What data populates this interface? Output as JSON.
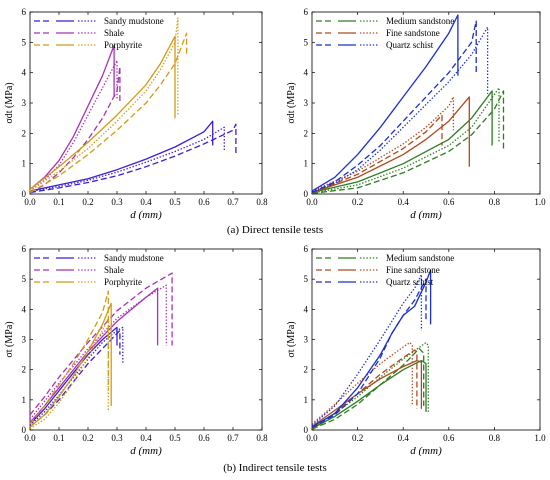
{
  "captions": [
    "(a) Direct tensile tests",
    "(b) Indirect tensile tests"
  ],
  "chart_data": [
    {
      "type": "line",
      "panel": "a-left",
      "xlabel": "d (mm)",
      "ylabel": "σdt (MPa)",
      "xlim": [
        0,
        0.8
      ],
      "ylim": [
        0,
        6
      ],
      "xticks": [
        "0.0",
        "0.1",
        "0.2",
        "0.3",
        "0.4",
        "0.5",
        "0.6",
        "0.7",
        "0.8"
      ],
      "yticks": [
        "0",
        "1",
        "2",
        "3",
        "4",
        "5",
        "6"
      ],
      "legend": {
        "placement": "top-left",
        "entries": [
          {
            "name": "Sandy mudstone",
            "color": "#3a1fd6"
          },
          {
            "name": "Shale",
            "color": "#a830b8"
          },
          {
            "name": "Porphyrite",
            "color": "#d39b14"
          }
        ]
      },
      "series": [
        {
          "name": "Sandy mudstone",
          "style": "solid",
          "color": "#3a1fd6",
          "x": [
            0,
            0.1,
            0.2,
            0.3,
            0.4,
            0.5,
            0.6,
            0.63,
            0.63
          ],
          "y": [
            0.1,
            0.3,
            0.5,
            0.8,
            1.15,
            1.55,
            2.05,
            2.4,
            1.6
          ]
        },
        {
          "name": "Sandy mudstone",
          "style": "dotted",
          "color": "#3a1fd6",
          "x": [
            0,
            0.1,
            0.2,
            0.3,
            0.4,
            0.5,
            0.6,
            0.67,
            0.67
          ],
          "y": [
            0.08,
            0.25,
            0.45,
            0.72,
            1.05,
            1.4,
            1.8,
            2.2,
            1.4
          ]
        },
        {
          "name": "Sandy mudstone",
          "style": "dashed",
          "color": "#3a1fd6",
          "x": [
            0,
            0.1,
            0.2,
            0.3,
            0.4,
            0.5,
            0.6,
            0.7,
            0.71,
            0.71
          ],
          "y": [
            0.05,
            0.2,
            0.38,
            0.6,
            0.9,
            1.25,
            1.65,
            2.1,
            2.3,
            1.3
          ]
        },
        {
          "name": "Shale",
          "style": "solid",
          "color": "#a830b8",
          "x": [
            0,
            0.05,
            0.1,
            0.15,
            0.2,
            0.25,
            0.29,
            0.29
          ],
          "y": [
            0.15,
            0.55,
            1.1,
            1.9,
            2.9,
            3.9,
            4.9,
            3.2
          ]
        },
        {
          "name": "Shale",
          "style": "dotted",
          "color": "#a830b8",
          "x": [
            0,
            0.05,
            0.1,
            0.15,
            0.2,
            0.25,
            0.3,
            0.3
          ],
          "y": [
            0.1,
            0.45,
            0.95,
            1.7,
            2.6,
            3.5,
            4.4,
            3.1
          ]
        },
        {
          "name": "Shale",
          "style": "dashed",
          "color": "#a830b8",
          "x": [
            0,
            0.05,
            0.1,
            0.15,
            0.2,
            0.25,
            0.3,
            0.31,
            0.31
          ],
          "y": [
            0.05,
            0.3,
            0.7,
            1.2,
            1.8,
            2.5,
            3.4,
            4.2,
            3.0
          ]
        },
        {
          "name": "Porphyrite",
          "style": "solid",
          "color": "#d39b14",
          "x": [
            0,
            0.1,
            0.2,
            0.3,
            0.4,
            0.45,
            0.5,
            0.5
          ],
          "y": [
            0.15,
            0.9,
            1.7,
            2.6,
            3.6,
            4.3,
            5.2,
            2.5
          ]
        },
        {
          "name": "Porphyrite",
          "style": "dotted",
          "color": "#d39b14",
          "x": [
            0,
            0.1,
            0.2,
            0.3,
            0.4,
            0.45,
            0.5,
            0.51,
            0.51
          ],
          "y": [
            0.1,
            0.75,
            1.5,
            2.4,
            3.4,
            4.1,
            5.0,
            5.8,
            2.6
          ]
        },
        {
          "name": "Porphyrite",
          "style": "dashed",
          "color": "#d39b14",
          "x": [
            0,
            0.1,
            0.2,
            0.3,
            0.4,
            0.45,
            0.5,
            0.54,
            0.54
          ],
          "y": [
            0.05,
            0.6,
            1.3,
            2.1,
            3.0,
            3.6,
            4.3,
            5.3,
            4.6
          ]
        }
      ]
    },
    {
      "type": "line",
      "panel": "a-right",
      "xlabel": "d (mm)",
      "ylabel": "σdt (MPa)",
      "xlim": [
        0,
        1.0
      ],
      "ylim": [
        0,
        6
      ],
      "xticks": [
        "0.0",
        "0.2",
        "0.4",
        "0.6",
        "0.8",
        "1.0"
      ],
      "yticks": [
        "0",
        "1",
        "2",
        "3",
        "4",
        "5",
        "6"
      ],
      "legend": {
        "placement": "top-left",
        "entries": [
          {
            "name": "Medium sandstone",
            "color": "#2b7d1e"
          },
          {
            "name": "Fine sandstone",
            "color": "#b04a1c"
          },
          {
            "name": "Quartz schist",
            "color": "#1a2fd0"
          }
        ]
      },
      "series": [
        {
          "name": "Medium sandstone",
          "style": "solid",
          "color": "#2b7d1e",
          "x": [
            0,
            0.2,
            0.4,
            0.6,
            0.7,
            0.79,
            0.79
          ],
          "y": [
            0.05,
            0.4,
            1.0,
            1.8,
            2.5,
            3.4,
            1.6
          ]
        },
        {
          "name": "Medium sandstone",
          "style": "dotted",
          "color": "#2b7d1e",
          "x": [
            0,
            0.2,
            0.4,
            0.6,
            0.7,
            0.82,
            0.82
          ],
          "y": [
            0.03,
            0.3,
            0.85,
            1.6,
            2.2,
            3.5,
            1.7
          ]
        },
        {
          "name": "Medium sandstone",
          "style": "dashed",
          "color": "#2b7d1e",
          "x": [
            0,
            0.2,
            0.4,
            0.6,
            0.7,
            0.8,
            0.84,
            0.84
          ],
          "y": [
            0.02,
            0.2,
            0.7,
            1.4,
            1.95,
            2.8,
            3.4,
            1.5
          ]
        },
        {
          "name": "Fine sandstone",
          "style": "solid",
          "color": "#b04a1c",
          "x": [
            0,
            0.2,
            0.4,
            0.5,
            0.6,
            0.69,
            0.69
          ],
          "y": [
            0.05,
            0.55,
            1.3,
            1.8,
            2.4,
            3.2,
            0.9
          ]
        },
        {
          "name": "Fine sandstone",
          "style": "dotted",
          "color": "#b04a1c",
          "x": [
            0,
            0.2,
            0.4,
            0.5,
            0.6,
            0.62,
            0.62
          ],
          "y": [
            0.1,
            0.75,
            1.65,
            2.2,
            2.9,
            3.2,
            2.1
          ]
        },
        {
          "name": "Fine sandstone",
          "style": "dashed",
          "color": "#b04a1c",
          "x": [
            0,
            0.2,
            0.4,
            0.5,
            0.57,
            0.57
          ],
          "y": [
            0.04,
            0.65,
            1.5,
            2.05,
            2.6,
            1.6
          ]
        },
        {
          "name": "Quartz schist",
          "style": "solid",
          "color": "#1a2fd0",
          "x": [
            0,
            0.1,
            0.2,
            0.3,
            0.4,
            0.5,
            0.6,
            0.64,
            0.64
          ],
          "y": [
            0.1,
            0.55,
            1.3,
            2.2,
            3.2,
            4.2,
            5.3,
            5.9,
            3.9
          ]
        },
        {
          "name": "Quartz schist",
          "style": "dotted",
          "color": "#1a2fd0",
          "x": [
            0,
            0.1,
            0.2,
            0.3,
            0.4,
            0.5,
            0.6,
            0.7,
            0.77,
            0.77
          ],
          "y": [
            0.08,
            0.35,
            0.8,
            1.45,
            2.2,
            2.95,
            3.7,
            4.6,
            5.5,
            3.3
          ]
        },
        {
          "name": "Quartz schist",
          "style": "dashed",
          "color": "#1a2fd0",
          "x": [
            0,
            0.1,
            0.2,
            0.3,
            0.4,
            0.5,
            0.6,
            0.7,
            0.72,
            0.72
          ],
          "y": [
            0.05,
            0.4,
            0.95,
            1.6,
            2.4,
            3.2,
            4.0,
            5.0,
            5.7,
            4.0
          ]
        }
      ]
    },
    {
      "type": "line",
      "panel": "b-left",
      "xlabel": "d (mm)",
      "ylabel": "σt (MPa)",
      "xlim": [
        0,
        0.8
      ],
      "ylim": [
        0,
        6
      ],
      "xticks": [
        "0.0",
        "0.1",
        "0.2",
        "0.3",
        "0.4",
        "0.5",
        "0.6",
        "0.7",
        "0.8"
      ],
      "yticks": [
        "0",
        "1",
        "2",
        "3",
        "4",
        "5",
        "6"
      ],
      "legend": {
        "placement": "top-left",
        "entries": [
          {
            "name": "Sandy mudstone",
            "color": "#3a1fd6"
          },
          {
            "name": "Shale",
            "color": "#a830b8"
          },
          {
            "name": "Porphyrite",
            "color": "#d39b14"
          }
        ]
      },
      "series": [
        {
          "name": "Sandy mudstone",
          "style": "solid",
          "color": "#3a1fd6",
          "x": [
            0,
            0.05,
            0.1,
            0.15,
            0.2,
            0.25,
            0.3,
            0.3
          ],
          "y": [
            0.2,
            0.7,
            1.3,
            1.9,
            2.5,
            3.0,
            3.4,
            2.8
          ]
        },
        {
          "name": "Sandy mudstone",
          "style": "dotted",
          "color": "#3a1fd6",
          "x": [
            0,
            0.05,
            0.1,
            0.15,
            0.2,
            0.25,
            0.3,
            0.32,
            0.32
          ],
          "y": [
            0.15,
            0.6,
            1.15,
            1.75,
            2.35,
            2.9,
            3.3,
            3.4,
            2.2
          ]
        },
        {
          "name": "Sandy mudstone",
          "style": "dashed",
          "color": "#3a1fd6",
          "x": [
            0,
            0.05,
            0.1,
            0.15,
            0.2,
            0.25,
            0.3,
            0.31,
            0.31
          ],
          "y": [
            0.1,
            0.5,
            1.0,
            1.6,
            2.2,
            2.7,
            3.2,
            3.3,
            2.5
          ]
        },
        {
          "name": "Shale",
          "style": "solid",
          "color": "#a830b8",
          "x": [
            0,
            0.05,
            0.1,
            0.2,
            0.3,
            0.4,
            0.44,
            0.44
          ],
          "y": [
            0.25,
            0.8,
            1.4,
            2.6,
            3.6,
            4.4,
            4.7,
            2.8
          ]
        },
        {
          "name": "Shale",
          "style": "dotted",
          "color": "#a830b8",
          "x": [
            0,
            0.05,
            0.1,
            0.2,
            0.3,
            0.4,
            0.47,
            0.47
          ],
          "y": [
            0.35,
            0.95,
            1.55,
            2.7,
            3.7,
            4.4,
            4.8,
            2.8
          ]
        },
        {
          "name": "Shale",
          "style": "dashed",
          "color": "#a830b8",
          "x": [
            0,
            0.05,
            0.1,
            0.2,
            0.3,
            0.4,
            0.49,
            0.49
          ],
          "y": [
            0.5,
            1.1,
            1.75,
            2.9,
            3.95,
            4.7,
            5.2,
            2.8
          ]
        },
        {
          "name": "Porphyrite",
          "style": "solid",
          "color": "#d39b14",
          "x": [
            0,
            0.05,
            0.1,
            0.15,
            0.2,
            0.25,
            0.28,
            0.28
          ],
          "y": [
            0.1,
            0.5,
            1.1,
            1.8,
            2.6,
            3.5,
            4.2,
            0.8
          ]
        },
        {
          "name": "Porphyrite",
          "style": "dotted",
          "color": "#d39b14",
          "x": [
            0,
            0.05,
            0.1,
            0.15,
            0.2,
            0.25,
            0.27,
            0.27
          ],
          "y": [
            0.05,
            0.35,
            0.9,
            1.6,
            2.4,
            3.3,
            3.7,
            0.6
          ]
        },
        {
          "name": "Porphyrite",
          "style": "dashed",
          "color": "#d39b14",
          "x": [
            0,
            0.05,
            0.1,
            0.15,
            0.2,
            0.25,
            0.27,
            0.27
          ],
          "y": [
            0.2,
            0.8,
            1.5,
            2.2,
            3.0,
            3.9,
            4.6,
            1.3
          ]
        }
      ]
    },
    {
      "type": "line",
      "panel": "b-right",
      "xlabel": "d (mm)",
      "ylabel": "σt (MPa)",
      "xlim": [
        0,
        1.0
      ],
      "ylim": [
        0,
        6
      ],
      "xticks": [
        "0.0",
        "0.2",
        "0.4",
        "0.6",
        "0.8",
        "1.0"
      ],
      "yticks": [
        "0",
        "1",
        "2",
        "3",
        "4",
        "5",
        "6"
      ],
      "legend": {
        "placement": "top-left",
        "entries": [
          {
            "name": "Medium sandstone",
            "color": "#2b7d1e"
          },
          {
            "name": "Fine sandstone",
            "color": "#b04a1c"
          },
          {
            "name": "Quartz schist",
            "color": "#1a2fd0"
          }
        ]
      },
      "series": [
        {
          "name": "Medium sandstone",
          "style": "solid",
          "color": "#2b7d1e",
          "x": [
            0,
            0.1,
            0.2,
            0.3,
            0.4,
            0.48,
            0.5,
            0.5
          ],
          "y": [
            0.05,
            0.45,
            0.95,
            1.5,
            2.0,
            2.3,
            2.2,
            0.6
          ]
        },
        {
          "name": "Medium sandstone",
          "style": "dotted",
          "color": "#2b7d1e",
          "x": [
            0,
            0.1,
            0.2,
            0.3,
            0.4,
            0.5,
            0.51,
            0.51
          ],
          "y": [
            0.08,
            0.55,
            1.1,
            1.75,
            2.35,
            2.9,
            2.8,
            0.6
          ]
        },
        {
          "name": "Medium sandstone",
          "style": "dashed",
          "color": "#2b7d1e",
          "x": [
            0,
            0.1,
            0.2,
            0.3,
            0.4,
            0.47,
            0.49,
            0.49
          ],
          "y": [
            0.03,
            0.35,
            0.85,
            1.5,
            2.15,
            2.7,
            2.55,
            0.8
          ]
        },
        {
          "name": "Fine sandstone",
          "style": "solid",
          "color": "#b04a1c",
          "x": [
            0,
            0.1,
            0.2,
            0.3,
            0.4,
            0.46,
            0.48,
            0.48
          ],
          "y": [
            0.12,
            0.65,
            1.2,
            1.7,
            2.1,
            2.3,
            2.25,
            0.7
          ]
        },
        {
          "name": "Fine sandstone",
          "style": "dotted",
          "color": "#b04a1c",
          "x": [
            0,
            0.1,
            0.2,
            0.3,
            0.4,
            0.43,
            0.44,
            0.44
          ],
          "y": [
            0.2,
            0.85,
            1.55,
            2.2,
            2.75,
            2.9,
            2.8,
            0.8
          ]
        },
        {
          "name": "Fine sandstone",
          "style": "dashed",
          "color": "#b04a1c",
          "x": [
            0,
            0.1,
            0.2,
            0.3,
            0.4,
            0.45,
            0.46,
            0.46
          ],
          "y": [
            0.05,
            0.55,
            1.2,
            1.85,
            2.4,
            2.65,
            2.6,
            0.7
          ]
        },
        {
          "name": "Quartz schist",
          "style": "solid",
          "color": "#1a2fd0",
          "x": [
            0,
            0.1,
            0.2,
            0.3,
            0.35,
            0.4,
            0.45,
            0.5,
            0.52,
            0.52
          ],
          "y": [
            0.1,
            0.55,
            1.4,
            2.5,
            3.2,
            3.8,
            4.1,
            4.9,
            5.3,
            3.5
          ]
        },
        {
          "name": "Quartz schist",
          "style": "dotted",
          "color": "#1a2fd0",
          "x": [
            0,
            0.1,
            0.2,
            0.3,
            0.35,
            0.4,
            0.45,
            0.48,
            0.48
          ],
          "y": [
            0.15,
            0.8,
            1.85,
            3.0,
            3.6,
            4.2,
            4.7,
            5.15,
            3.3
          ]
        },
        {
          "name": "Quartz schist",
          "style": "dashed",
          "color": "#1a2fd0",
          "x": [
            0,
            0.1,
            0.2,
            0.3,
            0.35,
            0.4,
            0.45,
            0.5,
            0.5
          ],
          "y": [
            0.08,
            0.5,
            1.2,
            2.4,
            3.2,
            3.8,
            4.3,
            5.0,
            3.6
          ]
        }
      ]
    }
  ]
}
